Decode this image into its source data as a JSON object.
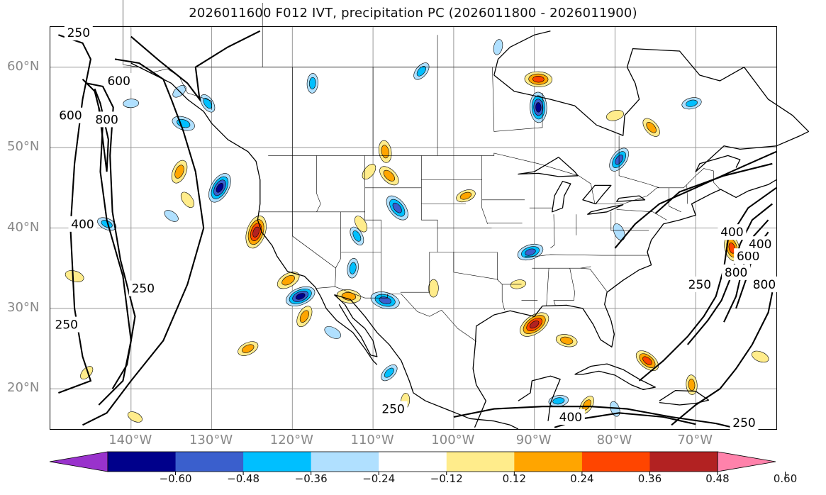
{
  "title": "2026011600 F012 IVT, precipitation PC (2026011800 - 2026011900)",
  "map": {
    "projection": "equirectangular",
    "lon_range": [
      -150,
      -60
    ],
    "lat_range": [
      15,
      65
    ],
    "gridlines": true,
    "lat_labels": [
      {
        "lat": 60,
        "text": "60°N"
      },
      {
        "lat": 50,
        "text": "50°N"
      },
      {
        "lat": 40,
        "text": "40°N"
      },
      {
        "lat": 30,
        "text": "30°N"
      },
      {
        "lat": 20,
        "text": "20°N"
      }
    ],
    "lon_labels": [
      {
        "lon": -140,
        "text": "140°W"
      },
      {
        "lon": -130,
        "text": "130°W"
      },
      {
        "lon": -120,
        "text": "120°W"
      },
      {
        "lon": -110,
        "text": "110°W"
      },
      {
        "lon": -100,
        "text": "100°W"
      },
      {
        "lon": -90,
        "text": "90°W"
      },
      {
        "lon": -80,
        "text": "80°W"
      },
      {
        "lon": -70,
        "text": "70°W"
      }
    ],
    "ivt_contour_labels": [
      {
        "lon": -146.5,
        "lat": 64.3,
        "text": "250"
      },
      {
        "lon": -141.5,
        "lat": 58.3,
        "text": "600"
      },
      {
        "lon": -147.5,
        "lat": 54.0,
        "text": "600"
      },
      {
        "lon": -143.0,
        "lat": 53.5,
        "text": "800"
      },
      {
        "lon": -146.0,
        "lat": 40.5,
        "text": "400"
      },
      {
        "lon": -138.5,
        "lat": 32.5,
        "text": "250"
      },
      {
        "lon": -148.0,
        "lat": 28.0,
        "text": "250"
      },
      {
        "lon": -107.5,
        "lat": 17.5,
        "text": "250"
      },
      {
        "lon": -85.5,
        "lat": 16.5,
        "text": "400"
      },
      {
        "lon": -64.0,
        "lat": 15.8,
        "text": "250"
      },
      {
        "lon": -69.5,
        "lat": 33.0,
        "text": "250"
      },
      {
        "lon": -65.5,
        "lat": 39.5,
        "text": "400"
      },
      {
        "lon": -63.5,
        "lat": 36.5,
        "text": "600"
      },
      {
        "lon": -65.0,
        "lat": 34.5,
        "text": "800"
      },
      {
        "lon": -62.0,
        "lat": 38.0,
        "text": "400"
      },
      {
        "lon": -61.5,
        "lat": 33.0,
        "text": "800"
      }
    ],
    "precip_pc_blobs": [
      {
        "lon": -129.0,
        "lat": 45.0,
        "value": -0.58
      },
      {
        "lon": -119.0,
        "lat": 31.5,
        "value": -0.55
      },
      {
        "lon": -108.5,
        "lat": 31.0,
        "value": -0.52
      },
      {
        "lon": -107.0,
        "lat": 42.5,
        "value": -0.5
      },
      {
        "lon": -89.5,
        "lat": 55.0,
        "value": -0.55
      },
      {
        "lon": -79.5,
        "lat": 48.5,
        "value": -0.45
      },
      {
        "lon": -90.5,
        "lat": 37.0,
        "value": -0.45
      },
      {
        "lon": -133.5,
        "lat": 53.0,
        "value": -0.38
      },
      {
        "lon": -130.5,
        "lat": 55.5,
        "value": -0.3
      },
      {
        "lon": -117.5,
        "lat": 58.0,
        "value": -0.3
      },
      {
        "lon": -104.0,
        "lat": 59.5,
        "value": -0.3
      },
      {
        "lon": -70.5,
        "lat": 55.5,
        "value": -0.3
      },
      {
        "lon": -143.0,
        "lat": 40.5,
        "value": -0.3
      },
      {
        "lon": -112.0,
        "lat": 39.0,
        "value": -0.3
      },
      {
        "lon": -112.5,
        "lat": 35.0,
        "value": -0.3
      },
      {
        "lon": -108.0,
        "lat": 22.0,
        "value": -0.3
      },
      {
        "lon": -87.0,
        "lat": 18.5,
        "value": -0.3
      },
      {
        "lon": -115.0,
        "lat": 27.0,
        "value": -0.25
      },
      {
        "lon": -79.5,
        "lat": 39.5,
        "value": -0.25
      },
      {
        "lon": -94.5,
        "lat": 62.5,
        "value": -0.2
      },
      {
        "lon": -134.0,
        "lat": 57.0,
        "value": -0.2
      },
      {
        "lon": -140.0,
        "lat": 55.5,
        "value": -0.2
      },
      {
        "lon": -135.0,
        "lat": 41.5,
        "value": -0.2
      },
      {
        "lon": -80.0,
        "lat": 17.5,
        "value": -0.2
      },
      {
        "lon": -124.5,
        "lat": 39.5,
        "value": 0.62
      },
      {
        "lon": -90.0,
        "lat": 28.0,
        "value": 0.6
      },
      {
        "lon": -89.5,
        "lat": 58.5,
        "value": 0.48
      },
      {
        "lon": -76.0,
        "lat": 23.5,
        "value": 0.45
      },
      {
        "lon": -65.5,
        "lat": 37.5,
        "value": 0.45
      },
      {
        "lon": -134.0,
        "lat": 47.0,
        "value": 0.4
      },
      {
        "lon": -120.5,
        "lat": 33.5,
        "value": 0.4
      },
      {
        "lon": -113.0,
        "lat": 31.5,
        "value": 0.4
      },
      {
        "lon": -108.0,
        "lat": 46.5,
        "value": 0.38
      },
      {
        "lon": -108.5,
        "lat": 49.5,
        "value": 0.36
      },
      {
        "lon": -118.5,
        "lat": 29.0,
        "value": 0.36
      },
      {
        "lon": -125.5,
        "lat": 25.0,
        "value": 0.34
      },
      {
        "lon": -86.0,
        "lat": 26.0,
        "value": 0.34
      },
      {
        "lon": -75.5,
        "lat": 52.5,
        "value": 0.34
      },
      {
        "lon": -70.5,
        "lat": 20.5,
        "value": 0.3
      },
      {
        "lon": -83.5,
        "lat": 18.0,
        "value": 0.3
      },
      {
        "lon": -98.5,
        "lat": 44.0,
        "value": 0.3
      },
      {
        "lon": -147.0,
        "lat": 34.0,
        "value": 0.28
      },
      {
        "lon": -133.0,
        "lat": 43.5,
        "value": 0.25
      },
      {
        "lon": -102.5,
        "lat": 32.5,
        "value": 0.25
      },
      {
        "lon": -110.5,
        "lat": 47.0,
        "value": 0.25
      },
      {
        "lon": -80.0,
        "lat": 54.0,
        "value": 0.25
      },
      {
        "lon": -62.0,
        "lat": 24.0,
        "value": 0.25
      },
      {
        "lon": -111.5,
        "lat": 40.5,
        "value": 0.25
      },
      {
        "lon": -106.0,
        "lat": 18.5,
        "value": 0.2
      },
      {
        "lon": -145.5,
        "lat": 22.0,
        "value": 0.2
      },
      {
        "lon": -92.0,
        "lat": 33.0,
        "value": 0.2
      },
      {
        "lon": -139.5,
        "lat": 16.5,
        "value": 0.2
      }
    ]
  },
  "colorbar": {
    "levels": [
      -0.72,
      -0.6,
      -0.48,
      -0.36,
      -0.24,
      -0.12,
      0.12,
      0.24,
      0.36,
      0.48,
      0.6,
      0.72
    ],
    "colors": [
      "#9932CC",
      "#00008B",
      "#3A5FCD",
      "#00BFFF",
      "#B0E0FF",
      "#FFFFFF",
      "#FFEC8B",
      "#FFA500",
      "#FF4500",
      "#B22222",
      "#FF82AB"
    ],
    "extend": "both",
    "tick_labels": [
      "−0.60",
      "−0.48",
      "−0.36",
      "−0.24",
      "−0.12",
      "0.12",
      "0.24",
      "0.36",
      "0.48",
      "0.60"
    ]
  }
}
